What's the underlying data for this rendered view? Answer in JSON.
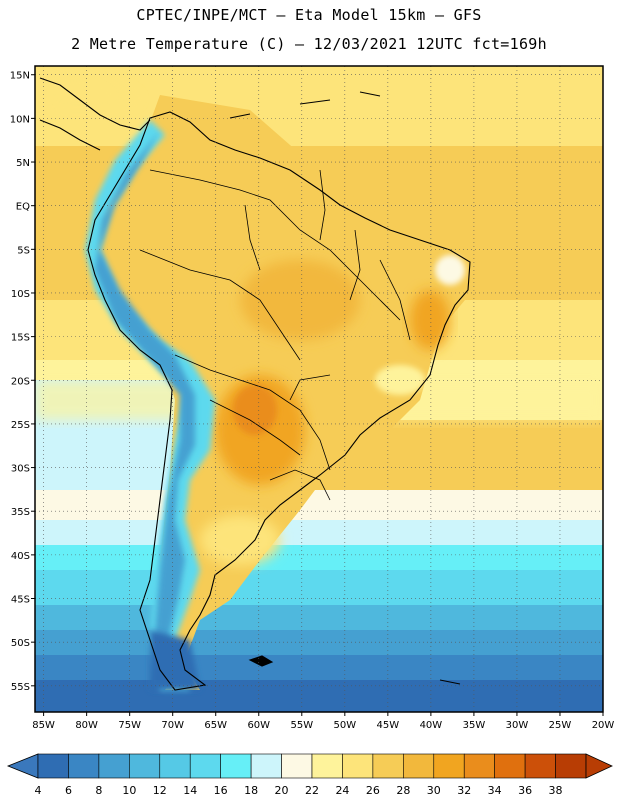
{
  "header": {
    "line1": "CPTEC/INPE/MCT –  Eta Model 15km – GFS",
    "line2": "2 Metre Temperature (C) – 12/03/2021 12UTC fct=169h"
  },
  "map": {
    "lat_labels": [
      "15N",
      "10N",
      "5N",
      "EQ",
      "5S",
      "10S",
      "15S",
      "20S",
      "25S",
      "30S",
      "35S",
      "40S",
      "45S",
      "50S",
      "55S"
    ],
    "lon_labels": [
      "85W",
      "80W",
      "75W",
      "70W",
      "65W",
      "60W",
      "55W",
      "50W",
      "45W",
      "40W",
      "35W",
      "30W",
      "25W",
      "20W"
    ],
    "extent": {
      "lon_min": -86,
      "lon_max": -20,
      "lat_min": -58,
      "lat_max": 16
    }
  },
  "colorbar": {
    "labels": [
      "4",
      "6",
      "8",
      "10",
      "12",
      "14",
      "16",
      "18",
      "20",
      "22",
      "24",
      "26",
      "28",
      "30",
      "32",
      "34",
      "36",
      "38"
    ],
    "colors": [
      "#2f6db3",
      "#3a86c4",
      "#45a0d1",
      "#4fb8dd",
      "#55c9e6",
      "#5dd9ee",
      "#66eff7",
      "#cdf5fb",
      "#fdf9e4",
      "#fef39b",
      "#fde47a",
      "#f6cc56",
      "#f2b83c",
      "#f1a520",
      "#ea8d1c",
      "#e0700e",
      "#cc5009",
      "#b83d04"
    ],
    "low_color": "#3a78bc",
    "high_color": "#b83d04"
  }
}
